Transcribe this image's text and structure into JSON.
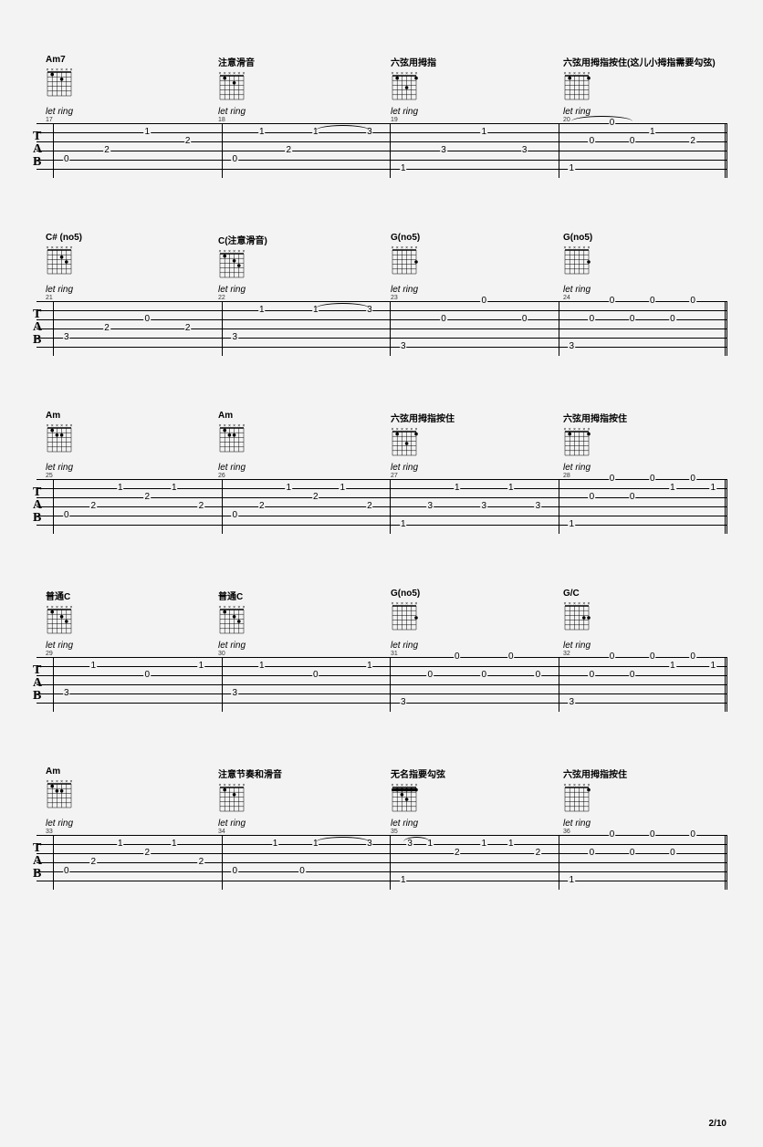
{
  "page_number": "2/10",
  "let_ring_text": "let ring",
  "tab_label": [
    "T",
    "A",
    "B"
  ],
  "systems": [
    {
      "bar_start": 17,
      "chords": [
        {
          "name": "Am7",
          "dots": [
            {
              "f": 2,
              "s": 4
            },
            {
              "f": 1,
              "s": 2
            }
          ]
        },
        {
          "name": "注意滑音",
          "dots": [
            {
              "f": 2,
              "s": 4
            },
            {
              "f": 1,
              "s": 2
            }
          ]
        },
        {
          "name": "六弦用拇指",
          "dots": [
            {
              "f": 3,
              "s": 4
            },
            {
              "f": 1,
              "s": 6
            },
            {
              "f": 1,
              "s": 2
            }
          ]
        },
        {
          "name": "六弦用拇指按住(这儿小拇指需要勾弦)",
          "dots": [
            {
              "f": 1,
              "s": 6
            },
            {
              "f": 1,
              "s": 2
            }
          ]
        }
      ],
      "measures": [
        {
          "notes": [
            {
              "s": 5,
              "p": 0.08,
              "v": "0"
            },
            {
              "s": 4,
              "p": 0.32,
              "v": "2"
            },
            {
              "s": 2,
              "p": 0.56,
              "v": "1"
            },
            {
              "s": 3,
              "p": 0.8,
              "v": "2"
            }
          ]
        },
        {
          "notes": [
            {
              "s": 5,
              "p": 0.08,
              "v": "0"
            },
            {
              "s": 2,
              "p": 0.24,
              "v": "1"
            },
            {
              "s": 4,
              "p": 0.4,
              "v": "2"
            },
            {
              "s": 2,
              "p": 0.56,
              "v": "1"
            },
            {
              "s": 2,
              "p": 0.88,
              "v": "3"
            }
          ],
          "tie": {
            "from": 0.56,
            "to": 0.88,
            "s": 2
          }
        },
        {
          "notes": [
            {
              "s": 6,
              "p": 0.08,
              "v": "1"
            },
            {
              "s": 4,
              "p": 0.32,
              "v": "3"
            },
            {
              "s": 2,
              "p": 0.56,
              "v": "1"
            },
            {
              "s": 4,
              "p": 0.8,
              "v": "3"
            }
          ]
        },
        {
          "notes": [
            {
              "s": 6,
              "p": 0.08,
              "v": "1"
            },
            {
              "s": 3,
              "p": 0.2,
              "v": "0"
            },
            {
              "s": 1,
              "p": 0.32,
              "v": "0"
            },
            {
              "s": 3,
              "p": 0.44,
              "v": "0"
            },
            {
              "s": 2,
              "p": 0.56,
              "v": "1"
            },
            {
              "s": 3,
              "p": 0.8,
              "v": "2"
            }
          ],
          "tie": {
            "from": 0.08,
            "to": 0.44,
            "s": 1,
            "type": "phrase"
          }
        }
      ]
    },
    {
      "bar_start": 21,
      "chords": [
        {
          "name": "C# (no5)",
          "dots": [
            {
              "f": 2,
              "s": 4
            },
            {
              "f": 3,
              "s": 5
            }
          ]
        },
        {
          "name": "C(注意滑音)",
          "dots": [
            {
              "f": 2,
              "s": 4
            },
            {
              "f": 3,
              "s": 5
            },
            {
              "f": 1,
              "s": 2
            }
          ]
        },
        {
          "name": "G(no5)",
          "dots": [
            {
              "f": 3,
              "s": 6
            }
          ]
        },
        {
          "name": "G(no5)",
          "dots": [
            {
              "f": 3,
              "s": 6
            }
          ]
        }
      ],
      "measures": [
        {
          "notes": [
            {
              "s": 5,
              "p": 0.08,
              "v": "3"
            },
            {
              "s": 4,
              "p": 0.32,
              "v": "2"
            },
            {
              "s": 3,
              "p": 0.56,
              "v": "0"
            },
            {
              "s": 4,
              "p": 0.8,
              "v": "2"
            }
          ]
        },
        {
          "notes": [
            {
              "s": 5,
              "p": 0.08,
              "v": "3"
            },
            {
              "s": 2,
              "p": 0.24,
              "v": "1"
            },
            {
              "s": 2,
              "p": 0.56,
              "v": "1"
            },
            {
              "s": 2,
              "p": 0.88,
              "v": "3"
            }
          ],
          "tie": {
            "from": 0.56,
            "to": 0.88,
            "s": 2
          }
        },
        {
          "notes": [
            {
              "s": 6,
              "p": 0.08,
              "v": "3"
            },
            {
              "s": 3,
              "p": 0.32,
              "v": "0"
            },
            {
              "s": 1,
              "p": 0.56,
              "v": "0"
            },
            {
              "s": 3,
              "p": 0.8,
              "v": "0"
            }
          ]
        },
        {
          "notes": [
            {
              "s": 6,
              "p": 0.08,
              "v": "3"
            },
            {
              "s": 3,
              "p": 0.2,
              "v": "0"
            },
            {
              "s": 1,
              "p": 0.32,
              "v": "0"
            },
            {
              "s": 3,
              "p": 0.44,
              "v": "0"
            },
            {
              "s": 1,
              "p": 0.56,
              "v": "0"
            },
            {
              "s": 3,
              "p": 0.68,
              "v": "0"
            },
            {
              "s": 1,
              "p": 0.8,
              "v": "0"
            }
          ]
        }
      ]
    },
    {
      "bar_start": 25,
      "chords": [
        {
          "name": "Am",
          "dots": [
            {
              "f": 2,
              "s": 4
            },
            {
              "f": 2,
              "s": 3
            },
            {
              "f": 1,
              "s": 2
            }
          ]
        },
        {
          "name": "Am",
          "dots": [
            {
              "f": 2,
              "s": 4
            },
            {
              "f": 2,
              "s": 3
            },
            {
              "f": 1,
              "s": 2
            }
          ]
        },
        {
          "name": "六弦用拇指按住",
          "dots": [
            {
              "f": 3,
              "s": 4
            },
            {
              "f": 1,
              "s": 6
            },
            {
              "f": 1,
              "s": 2
            }
          ]
        },
        {
          "name": "六弦用拇指按住",
          "dots": [
            {
              "f": 1,
              "s": 6
            },
            {
              "f": 1,
              "s": 2
            }
          ]
        }
      ],
      "measures": [
        {
          "notes": [
            {
              "s": 5,
              "p": 0.08,
              "v": "0"
            },
            {
              "s": 4,
              "p": 0.24,
              "v": "2"
            },
            {
              "s": 2,
              "p": 0.4,
              "v": "1"
            },
            {
              "s": 3,
              "p": 0.56,
              "v": "2"
            },
            {
              "s": 2,
              "p": 0.72,
              "v": "1"
            },
            {
              "s": 4,
              "p": 0.88,
              "v": "2"
            }
          ]
        },
        {
          "notes": [
            {
              "s": 5,
              "p": 0.08,
              "v": "0"
            },
            {
              "s": 4,
              "p": 0.24,
              "v": "2"
            },
            {
              "s": 2,
              "p": 0.4,
              "v": "1"
            },
            {
              "s": 3,
              "p": 0.56,
              "v": "2"
            },
            {
              "s": 2,
              "p": 0.72,
              "v": "1"
            },
            {
              "s": 4,
              "p": 0.88,
              "v": "2"
            }
          ]
        },
        {
          "notes": [
            {
              "s": 6,
              "p": 0.08,
              "v": "1"
            },
            {
              "s": 4,
              "p": 0.24,
              "v": "3"
            },
            {
              "s": 2,
              "p": 0.4,
              "v": "1"
            },
            {
              "s": 4,
              "p": 0.56,
              "v": "3"
            },
            {
              "s": 2,
              "p": 0.72,
              "v": "1"
            },
            {
              "s": 4,
              "p": 0.88,
              "v": "3"
            }
          ]
        },
        {
          "notes": [
            {
              "s": 6,
              "p": 0.08,
              "v": "1"
            },
            {
              "s": 3,
              "p": 0.2,
              "v": "0"
            },
            {
              "s": 1,
              "p": 0.32,
              "v": "0"
            },
            {
              "s": 3,
              "p": 0.44,
              "v": "0"
            },
            {
              "s": 1,
              "p": 0.56,
              "v": "0"
            },
            {
              "s": 2,
              "p": 0.68,
              "v": "1"
            },
            {
              "s": 1,
              "p": 0.8,
              "v": "0"
            },
            {
              "s": 2,
              "p": 0.92,
              "v": "1"
            }
          ]
        }
      ]
    },
    {
      "bar_start": 29,
      "chords": [
        {
          "name": "普通C",
          "dots": [
            {
              "f": 1,
              "s": 2
            },
            {
              "f": 2,
              "s": 4
            },
            {
              "f": 3,
              "s": 5
            }
          ]
        },
        {
          "name": "普通C",
          "dots": [
            {
              "f": 1,
              "s": 2
            },
            {
              "f": 2,
              "s": 4
            },
            {
              "f": 3,
              "s": 5
            }
          ]
        },
        {
          "name": "G(no5)",
          "dots": [
            {
              "f": 3,
              "s": 6
            }
          ]
        },
        {
          "name": "G/C",
          "dots": [
            {
              "f": 3,
              "s": 6
            },
            {
              "f": 3,
              "s": 5
            }
          ]
        }
      ],
      "measures": [
        {
          "notes": [
            {
              "s": 5,
              "p": 0.08,
              "v": "3"
            },
            {
              "s": 2,
              "p": 0.24,
              "v": "1"
            },
            {
              "s": 3,
              "p": 0.56,
              "v": "0"
            },
            {
              "s": 2,
              "p": 0.88,
              "v": "1"
            }
          ]
        },
        {
          "notes": [
            {
              "s": 5,
              "p": 0.08,
              "v": "3"
            },
            {
              "s": 2,
              "p": 0.24,
              "v": "1"
            },
            {
              "s": 3,
              "p": 0.56,
              "v": "0"
            },
            {
              "s": 2,
              "p": 0.88,
              "v": "1"
            }
          ]
        },
        {
          "notes": [
            {
              "s": 6,
              "p": 0.08,
              "v": "3"
            },
            {
              "s": 3,
              "p": 0.24,
              "v": "0"
            },
            {
              "s": 1,
              "p": 0.4,
              "v": "0"
            },
            {
              "s": 3,
              "p": 0.56,
              "v": "0"
            },
            {
              "s": 1,
              "p": 0.72,
              "v": "0"
            },
            {
              "s": 3,
              "p": 0.88,
              "v": "0"
            }
          ]
        },
        {
          "notes": [
            {
              "s": 6,
              "p": 0.08,
              "v": "3"
            },
            {
              "s": 3,
              "p": 0.2,
              "v": "0"
            },
            {
              "s": 1,
              "p": 0.32,
              "v": "0"
            },
            {
              "s": 3,
              "p": 0.44,
              "v": "0"
            },
            {
              "s": 1,
              "p": 0.56,
              "v": "0"
            },
            {
              "s": 2,
              "p": 0.68,
              "v": "1"
            },
            {
              "s": 1,
              "p": 0.8,
              "v": "0"
            },
            {
              "s": 2,
              "p": 0.92,
              "v": "1"
            }
          ]
        }
      ]
    },
    {
      "bar_start": 33,
      "chords": [
        {
          "name": "Am",
          "dots": [
            {
              "f": 2,
              "s": 4
            },
            {
              "f": 2,
              "s": 3
            },
            {
              "f": 1,
              "s": 2
            }
          ]
        },
        {
          "name": "注意节奏和滑音",
          "dots": [
            {
              "f": 2,
              "s": 4
            },
            {
              "f": 1,
              "s": 2
            }
          ]
        },
        {
          "name": "无名指要勾弦",
          "dots": [
            {
              "f": 1,
              "s": 6
            },
            {
              "f": 1,
              "s": 2
            },
            {
              "f": 1,
              "s": 3
            },
            {
              "f": 1,
              "s": 4
            },
            {
              "f": 1,
              "s": 5
            },
            {
              "f": 2,
              "s": 3
            },
            {
              "f": 3,
              "s": 4
            }
          ],
          "barre": 1
        },
        {
          "name": "六弦用拇指按住",
          "dots": [
            {
              "f": 1,
              "s": 6
            }
          ]
        }
      ],
      "measures": [
        {
          "notes": [
            {
              "s": 5,
              "p": 0.08,
              "v": "0"
            },
            {
              "s": 4,
              "p": 0.24,
              "v": "2"
            },
            {
              "s": 2,
              "p": 0.4,
              "v": "1"
            },
            {
              "s": 3,
              "p": 0.56,
              "v": "2"
            },
            {
              "s": 2,
              "p": 0.72,
              "v": "1"
            },
            {
              "s": 4,
              "p": 0.88,
              "v": "2"
            }
          ]
        },
        {
          "notes": [
            {
              "s": 5,
              "p": 0.08,
              "v": "0"
            },
            {
              "s": 2,
              "p": 0.32,
              "v": "1"
            },
            {
              "s": 5,
              "p": 0.48,
              "v": "0"
            },
            {
              "s": 2,
              "p": 0.56,
              "v": "1"
            },
            {
              "s": 2,
              "p": 0.88,
              "v": "3"
            }
          ],
          "tie": {
            "from": 0.56,
            "to": 0.88,
            "s": 2
          }
        },
        {
          "notes": [
            {
              "s": 6,
              "p": 0.08,
              "v": "1"
            },
            {
              "s": 2,
              "p": 0.12,
              "v": "3"
            },
            {
              "s": 2,
              "p": 0.24,
              "v": "1"
            },
            {
              "s": 3,
              "p": 0.4,
              "v": "2"
            },
            {
              "s": 2,
              "p": 0.56,
              "v": "1"
            },
            {
              "s": 2,
              "p": 0.72,
              "v": "1"
            },
            {
              "s": 3,
              "p": 0.88,
              "v": "2"
            }
          ],
          "tie_down": {
            "from": 0.08,
            "to": 0.24,
            "s": 2
          }
        },
        {
          "notes": [
            {
              "s": 6,
              "p": 0.08,
              "v": "1"
            },
            {
              "s": 3,
              "p": 0.2,
              "v": "0"
            },
            {
              "s": 1,
              "p": 0.32,
              "v": "0"
            },
            {
              "s": 3,
              "p": 0.44,
              "v": "0"
            },
            {
              "s": 1,
              "p": 0.56,
              "v": "0"
            },
            {
              "s": 3,
              "p": 0.68,
              "v": "0"
            },
            {
              "s": 1,
              "p": 0.8,
              "v": "0"
            }
          ]
        }
      ]
    }
  ]
}
